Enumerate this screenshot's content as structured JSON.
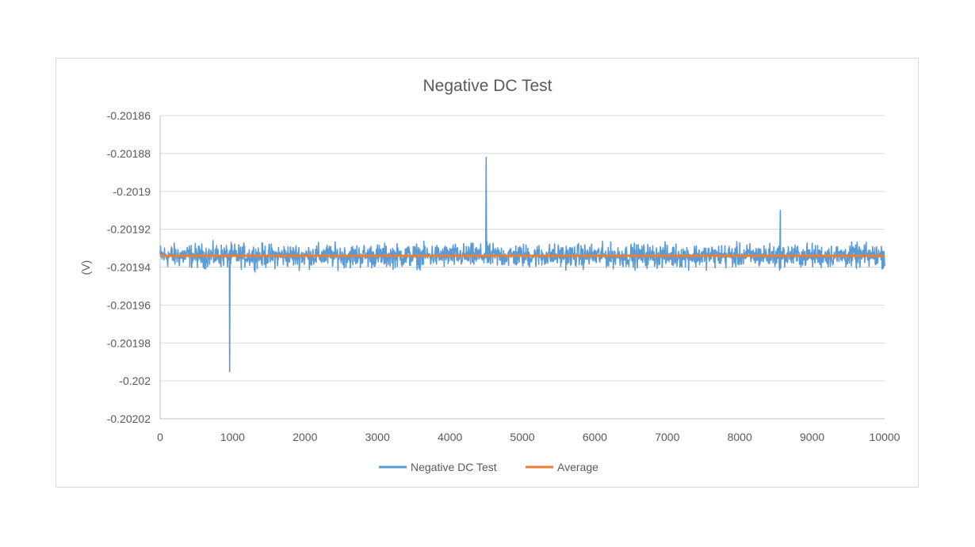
{
  "chart_data": {
    "type": "line",
    "title": "Negative DC Test",
    "xlabel": "",
    "ylabel": "(V)",
    "xlim": [
      0,
      10000
    ],
    "ylim": [
      -0.20202,
      -0.20186
    ],
    "x_ticks": [
      "0",
      "1000",
      "2000",
      "3000",
      "4000",
      "5000",
      "6000",
      "7000",
      "8000",
      "9000",
      "10000"
    ],
    "y_ticks": [
      "-0.20186",
      "-0.20188",
      "-0.2019",
      "-0.20192",
      "-0.20194",
      "-0.20196",
      "-0.20198",
      "-0.202",
      "-0.20202"
    ],
    "grid": "horizontal",
    "legend_position": "bottom",
    "series": [
      {
        "name": "Negative DC Test",
        "color": "#5b9bd5",
        "baseline": -0.201934,
        "noise_band": [
          -0.201943,
          -0.201925
        ],
        "spikes": [
          {
            "x": 960,
            "y": -0.201995
          },
          {
            "x": 4500,
            "y": -0.201882
          },
          {
            "x": 8560,
            "y": -0.20191
          }
        ]
      },
      {
        "name": "Average",
        "color": "#ed7d31",
        "value": -0.201934
      }
    ]
  }
}
